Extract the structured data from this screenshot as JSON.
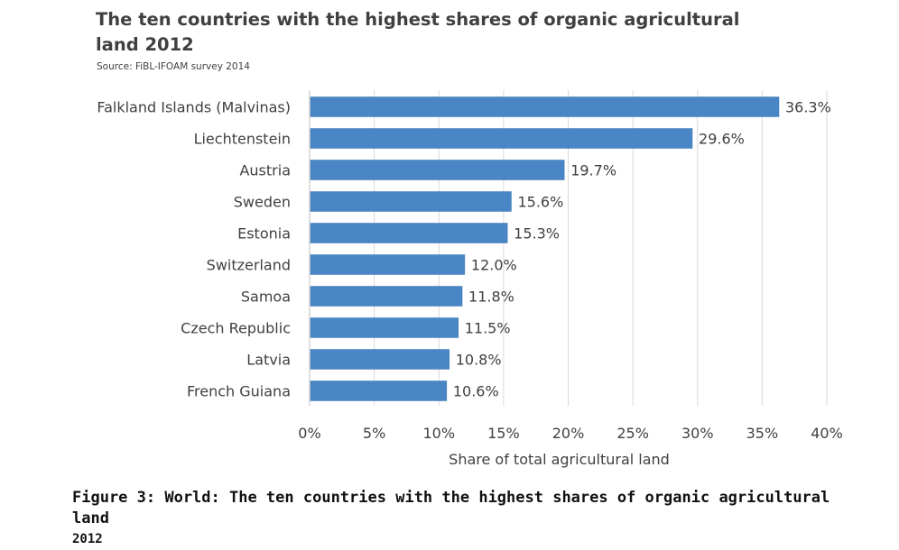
{
  "title": "The ten countries with the highest shares of organic agricultural land 2012",
  "source": "Source: FiBL-IFOAM survey 2014",
  "caption": {
    "line1": "Figure 3: World: The ten countries with the highest shares of organic agricultural land",
    "line2": "2012"
  },
  "colors": {
    "bar": "#4A86C5",
    "bar_edge": "#3F78B6",
    "grid": "#D9D9D9",
    "text": "#404040"
  },
  "chart_data": {
    "type": "bar",
    "orientation": "horizontal",
    "categories": [
      "Falkland Islands (Malvinas)",
      "Liechtenstein",
      "Austria",
      "Sweden",
      "Estonia",
      "Switzerland",
      "Samoa",
      "Czech Republic",
      "Latvia",
      "French Guiana"
    ],
    "values": [
      36.3,
      29.6,
      19.7,
      15.6,
      15.3,
      12.0,
      11.8,
      11.5,
      10.8,
      10.6
    ],
    "data_labels": [
      "36.3%",
      "29.6%",
      "19.7%",
      "15.6%",
      "15.3%",
      "12.0%",
      "11.8%",
      "11.5%",
      "10.8%",
      "10.6%"
    ],
    "xlabel": "Share of total agricultural land",
    "ylabel": "",
    "xlim": [
      0,
      40
    ],
    "xticks": [
      0,
      5,
      10,
      15,
      20,
      25,
      30,
      35,
      40
    ],
    "xtick_labels": [
      "0%",
      "5%",
      "10%",
      "15%",
      "20%",
      "25%",
      "30%",
      "35%",
      "40%"
    ],
    "grid": true,
    "legend": "none"
  }
}
